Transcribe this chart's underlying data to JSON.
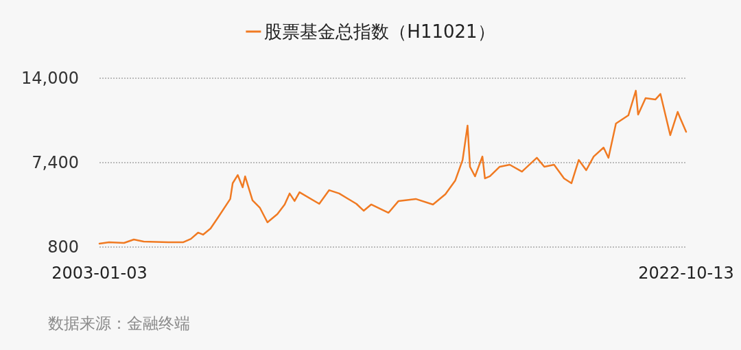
{
  "chart_data": {
    "type": "line",
    "annotations": [
      "数据来源：金融终端"
    ],
    "x": [
      "2003-01-03",
      "2003-05",
      "2003-11",
      "2004-03",
      "2004-07",
      "2005-05",
      "2005-11",
      "2006-02",
      "2006-05",
      "2006-07",
      "2006-10",
      "2007-01",
      "2007-06",
      "2007-07",
      "2007-09",
      "2007-11",
      "2007-12",
      "2008-03",
      "2008-06",
      "2008-09",
      "2009-01",
      "2009-04",
      "2009-06",
      "2009-08",
      "2009-10",
      "2010-06",
      "2010-10",
      "2011-02",
      "2011-09",
      "2011-12",
      "2012-03",
      "2012-10",
      "2013-02",
      "2013-09",
      "2014-04",
      "2014-09",
      "2015-01",
      "2015-04",
      "2015-06",
      "2015-07",
      "2015-09",
      "2015-12",
      "2016-01",
      "2016-03",
      "2016-07",
      "2016-11",
      "2017-04",
      "2017-10",
      "2018-01",
      "2018-05",
      "2018-09",
      "2018-12",
      "2019-03",
      "2019-06",
      "2019-09",
      "2020-01",
      "2020-03",
      "2020-06",
      "2020-11",
      "2021-02",
      "2021-03",
      "2021-06",
      "2021-10",
      "2021-12",
      "2022-04",
      "2022-07",
      "2022-08",
      "2022-10-13"
    ],
    "series": [
      {
        "name": "股票基金总指数（H11021）",
        "color": "#f07a22",
        "values": [
          1070,
          1180,
          1120,
          1390,
          1230,
          1180,
          1180,
          1440,
          1930,
          1770,
          2250,
          3110,
          4560,
          5790,
          6430,
          5470,
          6330,
          4450,
          3860,
          2730,
          3380,
          4130,
          4990,
          4400,
          5090,
          4180,
          5250,
          4990,
          4180,
          3640,
          4130,
          3480,
          4400,
          4560,
          4130,
          4930,
          6010,
          7610,
          10300,
          7080,
          6330,
          7880,
          6170,
          6330,
          7080,
          7240,
          6700,
          7780,
          7080,
          7240,
          6170,
          5790,
          7610,
          6810,
          7880,
          8580,
          7780,
          10460,
          11100,
          13030,
          11160,
          12440,
          12340,
          12770,
          9550,
          11370,
          10890,
          9810
        ]
      }
    ],
    "xlim": [
      "2003-01-03",
      "2022-10-13"
    ],
    "xticks": [
      "2003-01-03",
      "2022-10-13"
    ],
    "ylim": [
      800,
      14000
    ],
    "yticks": [
      {
        "value": 800,
        "label": "800"
      },
      {
        "value": 7400,
        "label": "7,400"
      },
      {
        "value": 14000,
        "label": "14,000"
      }
    ],
    "grid": "y",
    "legend": "top",
    "marker": "none",
    "line_style": "solid"
  }
}
